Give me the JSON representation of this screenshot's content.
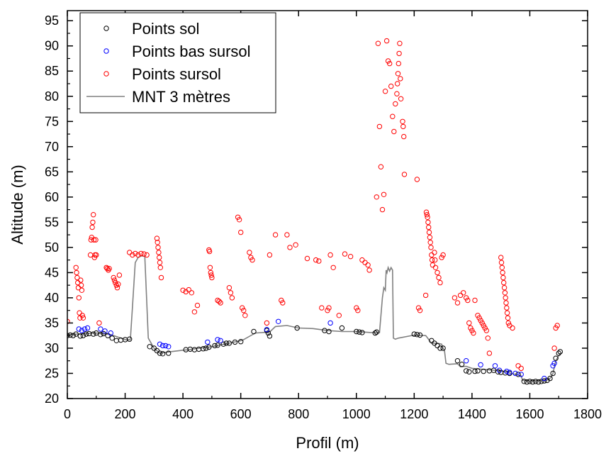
{
  "chart_data": {
    "type": "scatter",
    "xlabel": "Profil (m)",
    "ylabel": "Altitude (m)",
    "xlim": [
      0,
      1800
    ],
    "ylim": [
      20,
      97
    ],
    "xticks": [
      0,
      200,
      400,
      600,
      800,
      1000,
      1200,
      1400,
      1600,
      1800
    ],
    "yticks": [
      20,
      25,
      30,
      35,
      40,
      45,
      50,
      55,
      60,
      65,
      70,
      75,
      80,
      85,
      90,
      95
    ],
    "legend_position": "top-left",
    "series": [
      {
        "name": "Points sol",
        "kind": "scatter",
        "color": "#000000",
        "x": [
          0,
          10,
          20,
          30,
          45,
          55,
          65,
          75,
          90,
          100,
          115,
          125,
          140,
          155,
          170,
          185,
          200,
          215,
          285,
          300,
          310,
          320,
          330,
          350,
          410,
          425,
          440,
          455,
          470,
          480,
          490,
          510,
          520,
          540,
          550,
          560,
          580,
          600,
          645,
          690,
          695,
          700,
          795,
          890,
          905,
          950,
          1000,
          1010,
          1020,
          1065,
          1070,
          1200,
          1210,
          1220,
          1260,
          1270,
          1280,
          1290,
          1300,
          1350,
          1365,
          1380,
          1390,
          1410,
          1420,
          1440,
          1460,
          1475,
          1490,
          1500,
          1515,
          1530,
          1560,
          1580,
          1590,
          1600,
          1610,
          1620,
          1630,
          1640,
          1650,
          1660,
          1670,
          1680,
          1690,
          1700,
          1705
        ],
        "y": [
          32.5,
          32.6,
          32.5,
          32.8,
          32.4,
          32.5,
          32.8,
          32.9,
          32.8,
          33.0,
          32.7,
          32.9,
          32.5,
          32.0,
          31.5,
          31.6,
          31.7,
          31.8,
          30.3,
          30.0,
          29.5,
          29.0,
          28.9,
          29.0,
          29.7,
          29.8,
          29.7,
          29.8,
          29.9,
          30.0,
          30.2,
          30.5,
          30.6,
          30.8,
          31.0,
          31.0,
          31.2,
          31.3,
          33.3,
          33.5,
          33.0,
          32.4,
          34.0,
          33.5,
          33.3,
          34.0,
          33.3,
          33.2,
          33.1,
          33.0,
          33.2,
          32.8,
          32.7,
          32.6,
          31.5,
          31.0,
          30.5,
          30.0,
          30.0,
          27.5,
          26.8,
          25.5,
          25.3,
          25.4,
          25.5,
          25.4,
          25.5,
          25.6,
          25.3,
          25.2,
          25.1,
          25.0,
          24.8,
          23.4,
          23.3,
          23.4,
          23.3,
          23.4,
          23.3,
          23.4,
          23.5,
          23.6,
          24.0,
          25.0,
          28.0,
          29.0,
          29.3
        ]
      },
      {
        "name": "Points bas sursol",
        "kind": "scatter",
        "color": "#0000ff",
        "x": [
          40,
          50,
          60,
          70,
          115,
          130,
          150,
          320,
          330,
          340,
          350,
          485,
          520,
          530,
          690,
          730,
          910,
          1380,
          1430,
          1480,
          1495,
          1520,
          1530,
          1550,
          1570,
          1650,
          1680,
          1685
        ],
        "y": [
          33.8,
          33.5,
          33.8,
          34.0,
          33.8,
          33.4,
          33.0,
          30.8,
          30.5,
          30.5,
          30.3,
          31.2,
          31.7,
          31.5,
          33.7,
          35.3,
          35.0,
          27.5,
          26.7,
          26.5,
          25.6,
          25.4,
          25.2,
          25.0,
          24.8,
          24.0,
          26.5,
          27.0
        ]
      },
      {
        "name": "Points sursol",
        "kind": "scatter",
        "color": "#ff0000",
        "x": [
          0,
          30,
          32,
          34,
          36,
          38,
          40,
          42,
          44,
          46,
          48,
          50,
          52,
          55,
          80,
          82,
          84,
          86,
          88,
          90,
          92,
          94,
          96,
          98,
          100,
          110,
          135,
          138,
          142,
          145,
          160,
          163,
          166,
          170,
          173,
          176,
          180,
          215,
          225,
          235,
          245,
          255,
          265,
          275,
          310,
          312,
          314,
          316,
          318,
          320,
          322,
          325,
          400,
          410,
          420,
          430,
          440,
          450,
          490,
          492,
          494,
          496,
          498,
          500,
          520,
          525,
          530,
          560,
          565,
          570,
          590,
          595,
          600,
          605,
          610,
          615,
          630,
          635,
          640,
          690,
          700,
          720,
          740,
          745,
          760,
          770,
          790,
          830,
          860,
          870,
          880,
          900,
          905,
          910,
          920,
          940,
          960,
          980,
          1000,
          1005,
          1020,
          1030,
          1040,
          1045,
          1070,
          1075,
          1080,
          1085,
          1090,
          1095,
          1100,
          1105,
          1110,
          1115,
          1120,
          1125,
          1130,
          1135,
          1140,
          1142,
          1144,
          1146,
          1148,
          1150,
          1152,
          1154,
          1160,
          1162,
          1164,
          1166,
          1210,
          1215,
          1220,
          1240,
          1242,
          1244,
          1246,
          1248,
          1250,
          1252,
          1254,
          1256,
          1258,
          1260,
          1262,
          1264,
          1270,
          1272,
          1274,
          1280,
          1285,
          1290,
          1295,
          1300,
          1340,
          1350,
          1360,
          1370,
          1380,
          1385,
          1390,
          1395,
          1400,
          1405,
          1410,
          1420,
          1425,
          1430,
          1435,
          1440,
          1445,
          1450,
          1455,
          1460,
          1500,
          1502,
          1504,
          1506,
          1508,
          1510,
          1512,
          1514,
          1516,
          1518,
          1520,
          1522,
          1524,
          1526,
          1530,
          1540,
          1560,
          1570,
          1685,
          1690,
          1695
        ],
        "y": [
          35.3,
          46.0,
          45.0,
          44.0,
          43.0,
          42.0,
          40.0,
          37.0,
          36.0,
          43.5,
          42.5,
          41.5,
          36.5,
          36.0,
          48.5,
          51.5,
          52.0,
          54.0,
          55.0,
          56.5,
          51.5,
          48.0,
          48.5,
          51.5,
          48.5,
          35.0,
          46.0,
          45.8,
          45.5,
          45.8,
          44.0,
          43.5,
          43.0,
          42.5,
          42.0,
          42.7,
          44.5,
          49.0,
          48.5,
          48.8,
          48.5,
          48.8,
          48.7,
          48.5,
          51.8,
          51.0,
          50.0,
          49.0,
          48.0,
          47.0,
          46.0,
          44.0,
          41.5,
          41.2,
          41.6,
          41.0,
          37.2,
          38.5,
          49.5,
          49.2,
          46.0,
          45.0,
          44.5,
          44.0,
          39.5,
          39.3,
          39.0,
          42.0,
          41.0,
          40.0,
          56.0,
          55.5,
          53.0,
          38.0,
          37.5,
          36.5,
          49.0,
          48.0,
          47.5,
          35.0,
          48.5,
          52.5,
          39.5,
          39.0,
          52.5,
          50.0,
          50.5,
          47.8,
          47.5,
          47.3,
          38.0,
          37.5,
          38.0,
          48.5,
          46.0,
          36.5,
          48.7,
          48.2,
          38.0,
          37.5,
          47.5,
          47.0,
          46.5,
          45.5,
          60.0,
          90.5,
          74.0,
          66.0,
          57.5,
          60.5,
          81.0,
          91.0,
          87.0,
          86.5,
          82.0,
          76.0,
          73.0,
          78.5,
          80.5,
          82.5,
          84.5,
          86.5,
          88.5,
          90.5,
          83.5,
          79.5,
          75.0,
          74.0,
          72.0,
          64.5,
          63.5,
          38.0,
          37.5,
          40.5,
          57.0,
          56.5,
          56.0,
          55.0,
          54.0,
          53.0,
          52.0,
          51.0,
          50.0,
          48.5,
          47.5,
          46.5,
          49.0,
          47.5,
          46.0,
          45.0,
          44.0,
          43.0,
          48.0,
          48.5,
          40.0,
          39.0,
          40.5,
          41.0,
          40.0,
          39.5,
          35.0,
          34.0,
          33.5,
          33.0,
          39.5,
          36.5,
          36.0,
          35.5,
          35.0,
          34.5,
          34.0,
          33.5,
          32.0,
          29.0,
          48.0,
          47.0,
          46.0,
          45.0,
          44.0,
          43.0,
          42.0,
          41.0,
          40.0,
          39.0,
          38.0,
          37.0,
          36.0,
          35.0,
          34.5,
          34.0,
          26.5,
          26.0,
          30.0,
          34.0,
          34.5
        ]
      },
      {
        "name": "MNT 3 mètres",
        "kind": "line",
        "color": "#808080",
        "x": [
          0,
          100,
          150,
          200,
          218,
          225,
          235,
          245,
          255,
          262,
          268,
          280,
          300,
          320,
          345,
          400,
          420,
          500,
          560,
          600,
          610,
          650,
          700,
          720,
          760,
          800,
          850,
          900,
          950,
          1000,
          1050,
          1080,
          1090,
          1095,
          1100,
          1103,
          1106,
          1110,
          1115,
          1120,
          1125,
          1128,
          1135,
          1145,
          1200,
          1240,
          1260,
          1280,
          1295,
          1300,
          1305,
          1310,
          1320,
          1350,
          1360,
          1380,
          1400,
          1500,
          1550,
          1570,
          1575,
          1600,
          1650,
          1665,
          1675,
          1680,
          1690,
          1700,
          1705
        ],
        "y": [
          32.7,
          33.0,
          32.7,
          31.7,
          31.7,
          38.0,
          47.0,
          48.0,
          48.3,
          48.3,
          48.2,
          32.0,
          30.0,
          29.0,
          29.2,
          29.6,
          29.7,
          30.3,
          31.0,
          31.5,
          31.7,
          33.0,
          33.2,
          34.3,
          34.5,
          34.0,
          33.9,
          33.5,
          33.3,
          33.3,
          33.1,
          33.1,
          40.0,
          42.0,
          41.5,
          45.5,
          45.0,
          46.0,
          45.3,
          46.0,
          45.5,
          32.0,
          31.8,
          32.0,
          32.6,
          32.5,
          31.0,
          31.0,
          30.8,
          30.0,
          29.5,
          27.0,
          26.8,
          26.9,
          26.3,
          26.4,
          26.0,
          25.5,
          24.8,
          24.5,
          23.6,
          23.5,
          23.6,
          23.8,
          24.3,
          25.0,
          27.5,
          28.5,
          29.0
        ]
      }
    ]
  }
}
